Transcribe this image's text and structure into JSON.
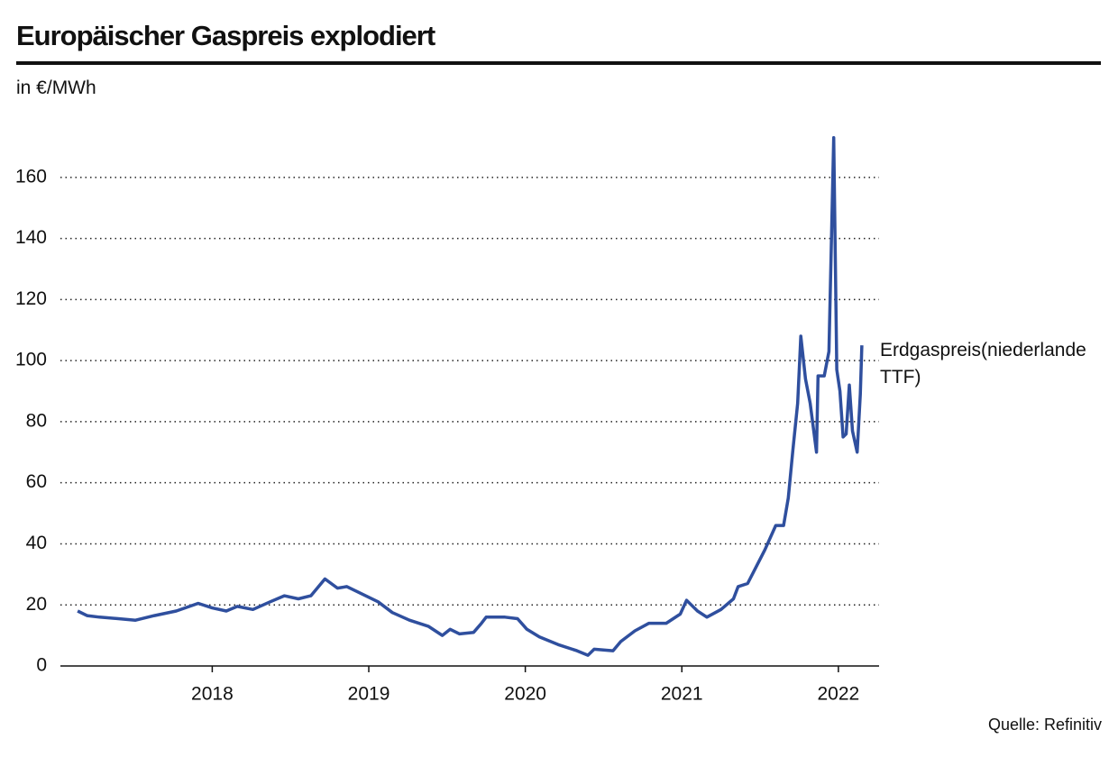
{
  "chart_data": {
    "type": "line",
    "title": "Europäischer Gaspreis explodiert",
    "subtitle": "in €/MWh",
    "source": "Quelle: Refinitiv",
    "x": [
      2017.14,
      2017.2,
      2017.28,
      2017.4,
      2017.51,
      2017.63,
      2017.77,
      2017.91,
      2018.0,
      2018.09,
      2018.16,
      2018.26,
      2018.37,
      2018.46,
      2018.55,
      2018.63,
      2018.72,
      2018.8,
      2018.86,
      2018.94,
      2019.06,
      2019.15,
      2019.26,
      2019.38,
      2019.47,
      2019.52,
      2019.58,
      2019.67,
      2019.72,
      2019.75,
      2019.87,
      2019.95,
      2020.01,
      2020.09,
      2020.21,
      2020.33,
      2020.4,
      2020.44,
      2020.56,
      2020.61,
      2020.7,
      2020.79,
      2020.9,
      2020.99,
      2021.03,
      2021.1,
      2021.16,
      2021.25,
      2021.33,
      2021.36,
      2021.42,
      2021.48,
      2021.53,
      2021.6,
      2021.65,
      2021.68,
      2021.71,
      2021.74,
      2021.76,
      2021.79,
      2021.82,
      2021.86,
      2021.87,
      2021.91,
      2021.94,
      2021.97,
      2021.99,
      2022.01,
      2022.03,
      2022.05,
      2022.07,
      2022.09,
      2022.12,
      2022.14,
      2022.15
    ],
    "series": [
      {
        "name": "Erdgaspreis(niederlande TTF)",
        "color": "#2f4f9e",
        "values": [
          18,
          16.5,
          16,
          15.5,
          15,
          16.5,
          18,
          20.5,
          19,
          18,
          19.5,
          18.5,
          21,
          23,
          22,
          23,
          28.5,
          25.5,
          26,
          24,
          21,
          17.5,
          15,
          13,
          10,
          12,
          10.5,
          11,
          14,
          16,
          16,
          15.5,
          12,
          9.5,
          7,
          5,
          3.5,
          5.5,
          5,
          8,
          11.5,
          14,
          14,
          17,
          21.5,
          18,
          16,
          18.5,
          22,
          26,
          27,
          33,
          38,
          46,
          46,
          55,
          71,
          86,
          108,
          94,
          86,
          70,
          95,
          95,
          103,
          173,
          97,
          90,
          75,
          76,
          92,
          77,
          70,
          89,
          105
        ]
      }
    ],
    "xlim": [
      2017.03,
      2022.26
    ],
    "xticks": [
      2018,
      2019,
      2020,
      2021,
      2022
    ],
    "ylim": [
      0,
      175
    ],
    "yticks": [
      0,
      20,
      40,
      60,
      80,
      100,
      120,
      140,
      160
    ],
    "grid": true
  }
}
